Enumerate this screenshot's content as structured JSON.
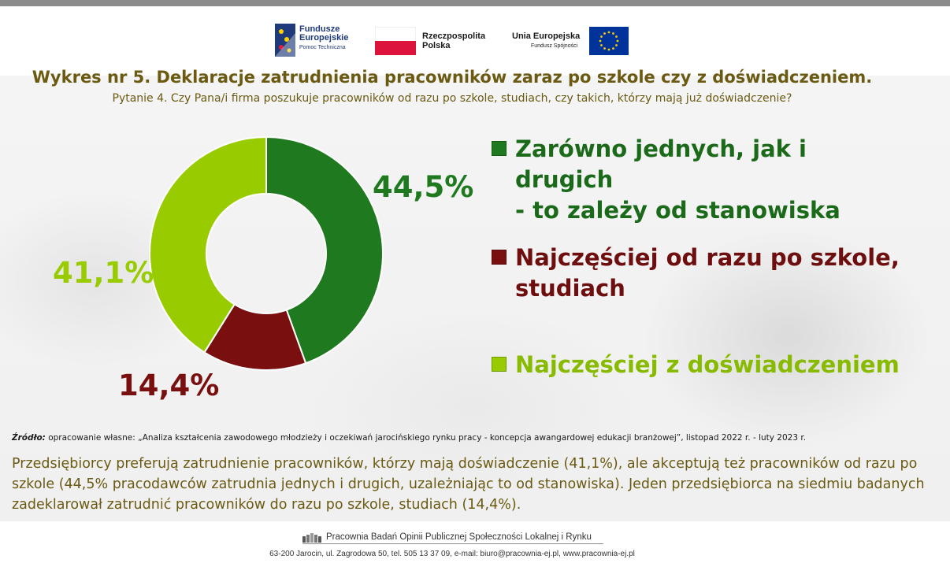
{
  "logos": {
    "fundusze": {
      "line1": "Fundusze",
      "line2": "Europejskie",
      "line3": "Pomoc Techniczna"
    },
    "rzeczpospolita": {
      "line1": "Rzeczpospolita",
      "line2": "Polska"
    },
    "unia": {
      "line1": "Unia Europejska",
      "line2": "Fundusz Spójności"
    }
  },
  "title": "Wykres nr 5. Deklaracje zatrudnienia pracowników zaraz po szkole czy z doświadczeniem.",
  "subtitle": "Pytanie 4. Czy Pana/i firma poszukuje pracowników od razu po szkole, studiach, czy takich, którzy mają już doświadczenie?",
  "chart_data": {
    "type": "pie",
    "donut": true,
    "slices": [
      {
        "label": "Zarówno jednych, jak i drugich - to zależy od stanowiska",
        "value": 44.5,
        "display": "44,5%",
        "color": "#1f7a1f"
      },
      {
        "label": "Najczęściej od razu po szkole, studiach",
        "value": 14.4,
        "display": "14,4%",
        "color": "#7a0f0f"
      },
      {
        "label": "Najczęściej z doświadczeniem",
        "value": 41.1,
        "display": "41,1%",
        "color": "#99cc00"
      }
    ],
    "legend": "right"
  },
  "legend": {
    "items": [
      {
        "line1": "Zarówno jednych, jak i drugich",
        "line2": "- to zależy od stanowiska",
        "color": "#1a6a1a"
      },
      {
        "line1": "Najczęściej od razu po szkole,",
        "line2": "studiach",
        "color": "#6e0e0e"
      },
      {
        "line1": "Najczęściej z doświadczeniem",
        "line2": "",
        "color": "#88bb00"
      }
    ]
  },
  "source": {
    "label": "Źródło:",
    "text": " opracowanie własne: „Analiza kształcenia zawodowego młodzieży i oczekiwań jarocińskiego rynku pracy - koncepcja awangardowej edukacji branżowej”, listopad 2022 r. - luty 2023 r."
  },
  "description": "Przedsiębiorcy preferują zatrudnienie pracowników, którzy mają doświadczenie (41,1%), ale akceptują też pracowników od razu po szkole (44,5% pracodawców zatrudnia jednych i drugich, uzależniając to od stanowiska). Jeden przedsiębiorca na siedmiu badanych zadeklarował zatrudnić pracowników do razu po szkole, studiach (14,4%).",
  "footer": {
    "title": "Pracownia Badań Opinii Publicznej Społeczności Lokalnej i Rynku",
    "address": "63-200 Jarocin, ul. Zagrodowa 50, tel. 505 13 37 09, e-mail: biuro@pracownia-ej.pl, www.pracownia-ej.pl"
  }
}
